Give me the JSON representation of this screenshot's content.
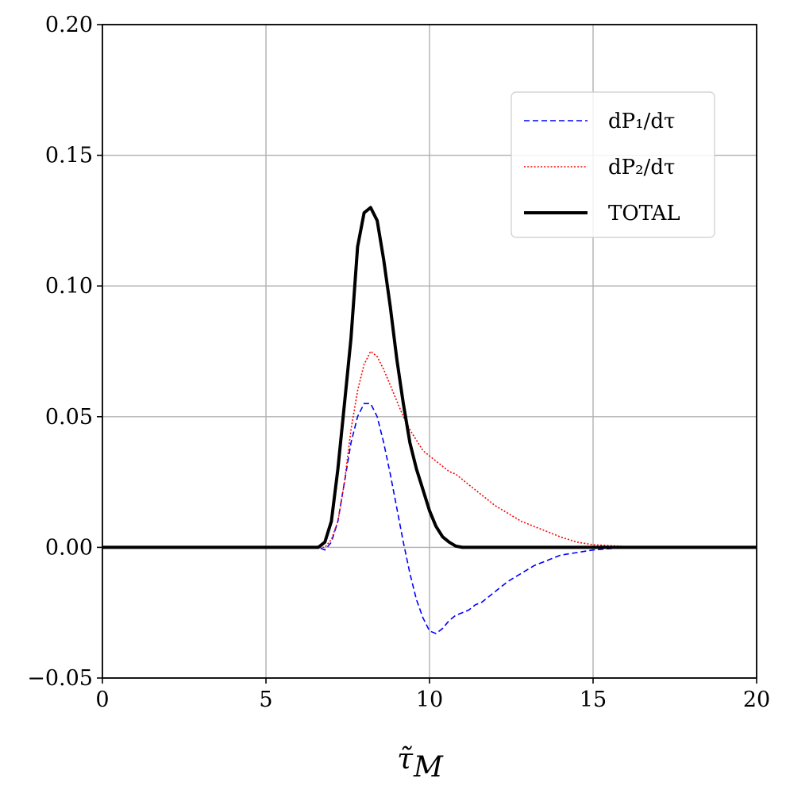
{
  "chart_data": {
    "type": "line",
    "title": "",
    "xlabel": "τ̃",
    "xlabel_sub": "M",
    "ylabel": "",
    "xlim": [
      0,
      20
    ],
    "ylim": [
      -0.05,
      0.2
    ],
    "x_ticks": [
      "0",
      "5",
      "10",
      "15",
      "20"
    ],
    "y_ticks": [
      "−0.05",
      "0.00",
      "0.05",
      "0.10",
      "0.15",
      "0.20"
    ],
    "grid": true,
    "legend_position": "upper-right",
    "series": [
      {
        "name": "dP₁/dτ",
        "color": "#0000ff",
        "style": "dashed",
        "x": [
          0,
          6.6,
          6.8,
          7.0,
          7.2,
          7.4,
          7.6,
          7.8,
          8.0,
          8.2,
          8.4,
          8.6,
          8.8,
          9.0,
          9.2,
          9.4,
          9.6,
          9.8,
          10.0,
          10.2,
          10.4,
          10.6,
          10.8,
          11.0,
          11.2,
          11.4,
          11.6,
          11.8,
          12.0,
          12.4,
          12.8,
          13.2,
          13.6,
          14.0,
          14.5,
          15.0,
          16.0,
          17.0,
          20
        ],
        "y": [
          0,
          0,
          -0.001,
          0.002,
          0.01,
          0.025,
          0.04,
          0.05,
          0.055,
          0.055,
          0.05,
          0.04,
          0.028,
          0.015,
          0.002,
          -0.01,
          -0.02,
          -0.027,
          -0.032,
          -0.033,
          -0.031,
          -0.028,
          -0.026,
          -0.025,
          -0.024,
          -0.022,
          -0.021,
          -0.019,
          -0.017,
          -0.013,
          -0.01,
          -0.007,
          -0.005,
          -0.003,
          -0.002,
          -0.001,
          0,
          0,
          0
        ]
      },
      {
        "name": "dP₂/dτ",
        "color": "#ff0000",
        "style": "dotted",
        "x": [
          0,
          6.6,
          6.8,
          7.0,
          7.2,
          7.4,
          7.6,
          7.8,
          8.0,
          8.2,
          8.4,
          8.6,
          8.8,
          9.0,
          9.2,
          9.4,
          9.6,
          9.8,
          10.0,
          10.2,
          10.4,
          10.6,
          10.8,
          11.0,
          11.2,
          11.4,
          11.6,
          11.8,
          12.0,
          12.4,
          12.8,
          13.2,
          13.6,
          14.0,
          14.5,
          15.0,
          16.0,
          17.0,
          20
        ],
        "y": [
          0,
          0,
          0,
          0.003,
          0.01,
          0.025,
          0.045,
          0.06,
          0.07,
          0.075,
          0.073,
          0.068,
          0.062,
          0.056,
          0.05,
          0.045,
          0.041,
          0.037,
          0.035,
          0.033,
          0.031,
          0.029,
          0.028,
          0.026,
          0.024,
          0.022,
          0.02,
          0.018,
          0.016,
          0.013,
          0.01,
          0.008,
          0.006,
          0.004,
          0.002,
          0.001,
          0.0003,
          0,
          0
        ]
      },
      {
        "name": "TOTAL",
        "color": "#000000",
        "style": "solid",
        "x": [
          0,
          6.6,
          6.8,
          7.0,
          7.2,
          7.4,
          7.6,
          7.8,
          8.0,
          8.2,
          8.4,
          8.6,
          8.8,
          9.0,
          9.2,
          9.4,
          9.6,
          9.8,
          10.0,
          10.2,
          10.4,
          10.6,
          10.8,
          11.0,
          20
        ],
        "y": [
          0,
          0,
          0.002,
          0.01,
          0.03,
          0.055,
          0.08,
          0.115,
          0.128,
          0.13,
          0.125,
          0.11,
          0.092,
          0.072,
          0.055,
          0.04,
          0.03,
          0.022,
          0.014,
          0.008,
          0.004,
          0.002,
          0.0005,
          0,
          0
        ]
      }
    ]
  }
}
